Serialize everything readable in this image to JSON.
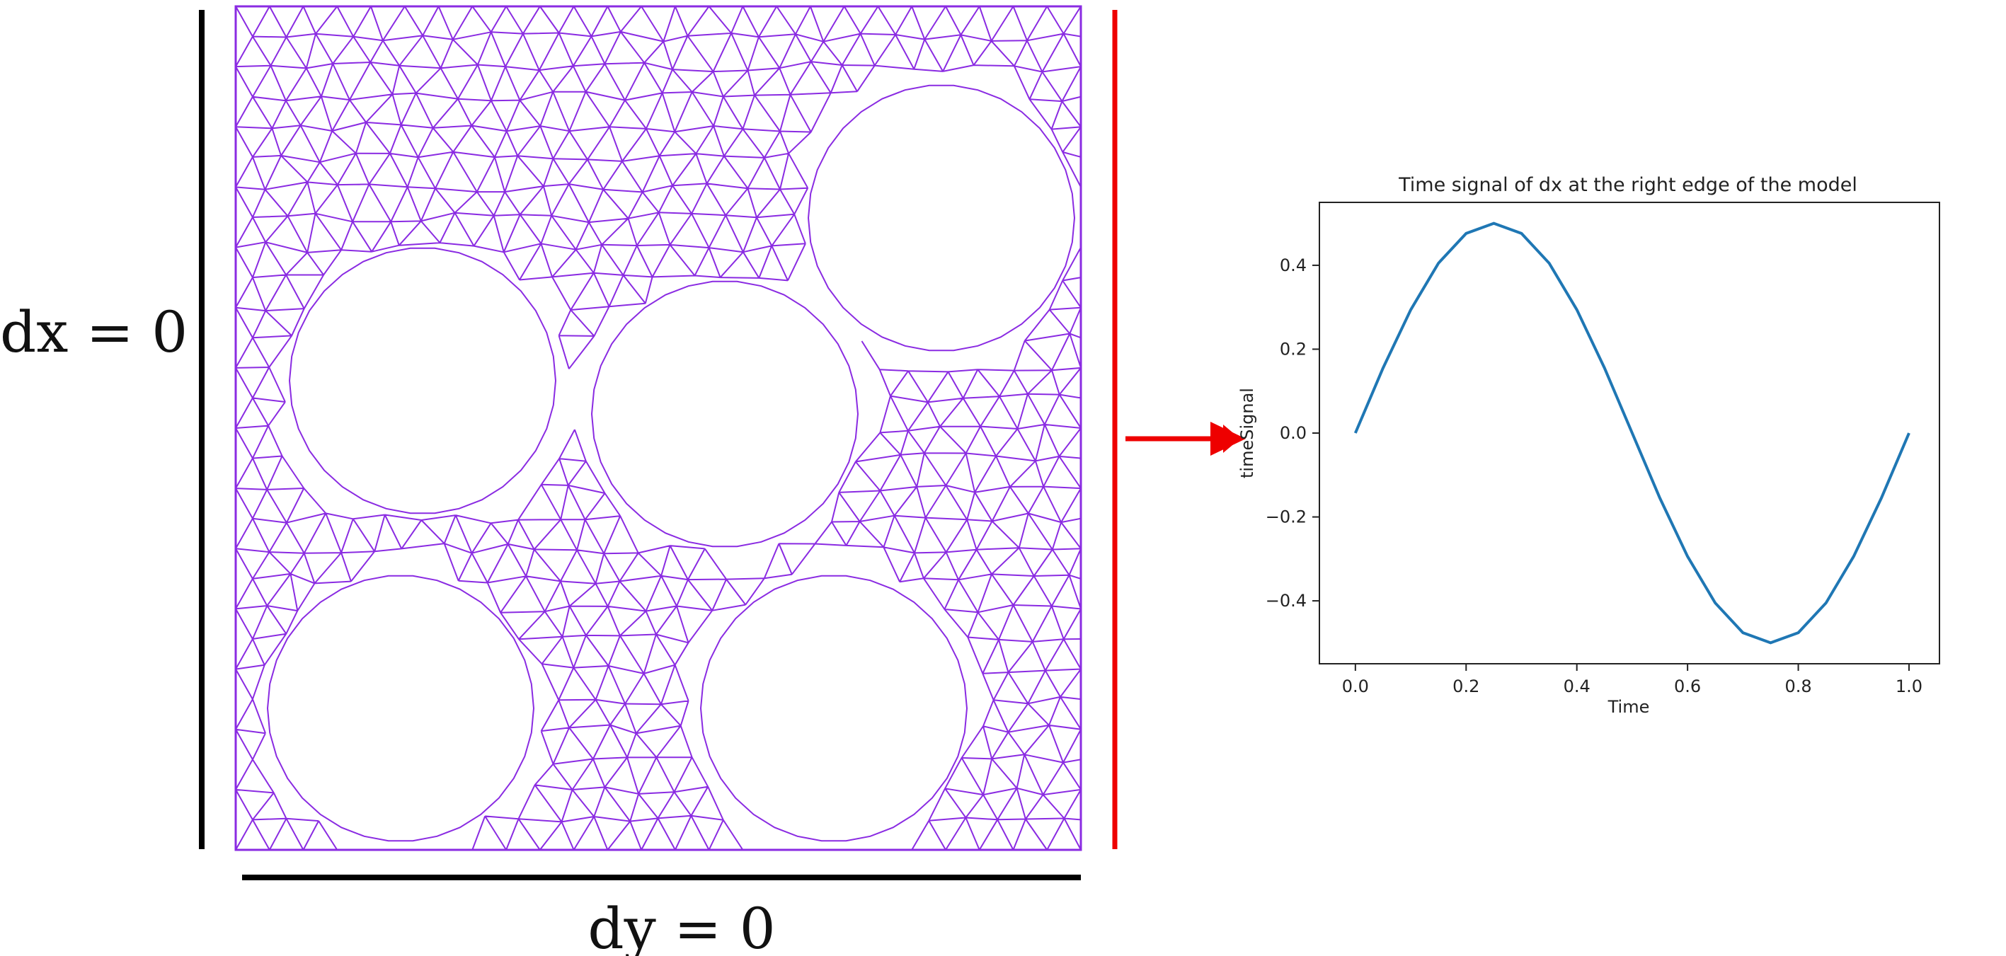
{
  "annotations": {
    "left_bc": "dx = 0",
    "bottom_bc": "dy = 0"
  },
  "colors": {
    "mesh": "#8a2be2",
    "load_edge": "#ee0000",
    "fixed_edge": "#000000",
    "curve": "#1f77b4"
  },
  "chart_data": {
    "type": "line",
    "title": "Time signal of dx at the right edge of the model",
    "xlabel": "Time",
    "ylabel": "timeSignal",
    "xlim": [
      -0.065,
      1.055
    ],
    "ylim": [
      -0.55,
      0.55
    ],
    "x_ticks": [
      "0.0",
      "0.2",
      "0.4",
      "0.6",
      "0.8",
      "1.0"
    ],
    "x_tick_values": [
      0.0,
      0.2,
      0.4,
      0.6,
      0.8,
      1.0
    ],
    "y_ticks": [
      "0.4",
      "0.2",
      "0.0",
      "−0.2",
      "−0.4"
    ],
    "y_tick_values": [
      0.4,
      0.2,
      0.0,
      -0.2,
      -0.4
    ],
    "series": [
      {
        "x": [
          0.0,
          0.05,
          0.1,
          0.15,
          0.2,
          0.25,
          0.3,
          0.35,
          0.4,
          0.45,
          0.5,
          0.55,
          0.6,
          0.65,
          0.7,
          0.75,
          0.8,
          0.85,
          0.9,
          0.95,
          1.0
        ],
        "y": [
          0.0,
          0.155,
          0.294,
          0.405,
          0.476,
          0.5,
          0.476,
          0.405,
          0.294,
          0.155,
          0.0,
          -0.155,
          -0.294,
          -0.405,
          -0.476,
          -0.5,
          -0.476,
          -0.405,
          -0.294,
          -0.155,
          0.0
        ]
      }
    ],
    "grid": false
  }
}
